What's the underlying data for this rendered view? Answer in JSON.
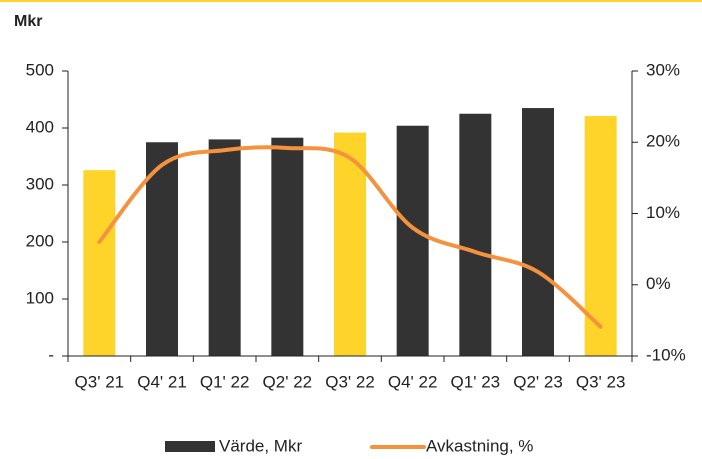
{
  "chart_data": {
    "type": "bar-line",
    "title": "Mkr",
    "categories": [
      "Q3' 21",
      "Q4' 21",
      "Q1' 22",
      "Q2' 22",
      "Q3' 22",
      "Q4' 22",
      "Q1' 23",
      "Q2' 23",
      "Q3' 23"
    ],
    "series": [
      {
        "name": "Värde, Mkr",
        "type": "bar",
        "color": "#333333",
        "axis": "y",
        "colors": [
          "#ffd42a",
          "#333333",
          "#333333",
          "#333333",
          "#ffd42a",
          "#333333",
          "#333333",
          "#333333",
          "#ffd42a"
        ],
        "values": [
          326,
          375,
          380,
          383,
          392,
          404,
          425,
          435,
          421
        ]
      },
      {
        "name": "Avkastning, %",
        "type": "line",
        "color": "#f5923e",
        "axis": "y2",
        "values": [
          6,
          16.8,
          18.9,
          19.2,
          17.8,
          8,
          4.6,
          1.8,
          -5.9
        ]
      }
    ],
    "ylim": [
      0,
      500
    ],
    "yticks": [
      {
        "value": 0,
        "label": "-"
      },
      100,
      200,
      300,
      400,
      500
    ],
    "y2lim": [
      -10,
      30
    ],
    "y2ticks": [
      {
        "value": -10,
        "label": "-10%"
      },
      {
        "value": 0,
        "label": "0%"
      },
      {
        "value": 10,
        "label": "10%"
      },
      {
        "value": 20,
        "label": "20%"
      },
      {
        "value": 30,
        "label": "30%"
      }
    ],
    "legend": "bottom"
  }
}
